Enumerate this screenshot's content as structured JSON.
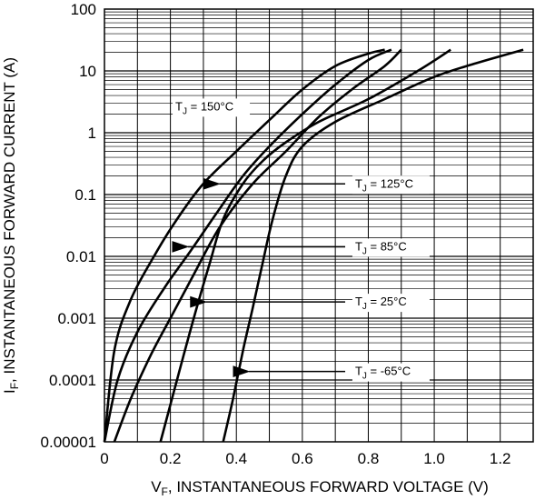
{
  "chart_data": {
    "type": "line",
    "title": "",
    "xlabel_main": "V",
    "xlabel_sub": "F",
    "xlabel_rest": ", INSTANTANEOUS FORWARD VOLTAGE (V)",
    "ylabel_main": "I",
    "ylabel_sub": "F",
    "ylabel_rest": ", INSTANTANEOUS FORWARD CURRENT (A)",
    "x_ticks": [
      "0",
      "0.2",
      "0.4",
      "0.6",
      "0.8",
      "1.0",
      "1.2"
    ],
    "y_ticks": [
      "0.00001",
      "0.0001",
      "0.001",
      "0.01",
      "0.1",
      "1",
      "10",
      "100"
    ],
    "xlim": [
      0,
      1.3
    ],
    "ylim": [
      1e-05,
      100
    ],
    "yscale": "log",
    "grid": true,
    "legend": "none",
    "series": [
      {
        "name": "150",
        "label_prefix": "T",
        "label_sub": "J",
        "label_rest": " = 150°C",
        "x": [
          0.0,
          0.03,
          0.08,
          0.15,
          0.22,
          0.3,
          0.4,
          0.5,
          0.6,
          0.7,
          0.8,
          0.85
        ],
        "y": [
          1e-05,
          0.0003,
          0.002,
          0.01,
          0.04,
          0.15,
          0.5,
          1.6,
          5,
          12,
          19,
          22
        ]
      },
      {
        "name": "125",
        "label_prefix": "T",
        "label_sub": "J",
        "label_rest": " = 125°C",
        "x": [
          0.0,
          0.04,
          0.1,
          0.18,
          0.26,
          0.34,
          0.42,
          0.5,
          0.6,
          0.7,
          0.8,
          0.87
        ],
        "y": [
          1e-05,
          0.0001,
          0.0006,
          0.003,
          0.012,
          0.05,
          0.2,
          0.6,
          2.0,
          6,
          15,
          22
        ]
      },
      {
        "name": "85",
        "label_prefix": "T",
        "label_sub": "J",
        "label_rest": " = 85°C",
        "x": [
          0.03,
          0.08,
          0.14,
          0.2,
          0.27,
          0.35,
          0.45,
          0.55,
          0.65,
          0.75,
          0.85,
          0.9
        ],
        "y": [
          1e-05,
          5e-05,
          0.00025,
          0.001,
          0.005,
          0.03,
          0.15,
          0.5,
          1.8,
          5,
          12,
          22
        ]
      },
      {
        "name": "25",
        "label_prefix": "T",
        "label_sub": "J",
        "label_rest": " = 25°C",
        "x": [
          0.17,
          0.2,
          0.24,
          0.28,
          0.32,
          0.36,
          0.42,
          0.48,
          0.55,
          0.65,
          0.8,
          0.95,
          1.05
        ],
        "y": [
          1e-05,
          4e-05,
          0.00025,
          0.0015,
          0.008,
          0.04,
          0.15,
          0.35,
          0.7,
          1.5,
          3.5,
          10,
          22
        ]
      },
      {
        "name": "-65",
        "label_prefix": "T",
        "label_sub": "J",
        "label_rest": " = -65°C",
        "x": [
          0.36,
          0.39,
          0.42,
          0.45,
          0.48,
          0.51,
          0.55,
          0.6,
          0.7,
          0.85,
          1.0,
          1.12,
          1.27
        ],
        "y": [
          1e-05,
          5e-05,
          0.0003,
          0.0015,
          0.008,
          0.04,
          0.2,
          0.6,
          1.5,
          3.5,
          8,
          13,
          22
        ]
      }
    ],
    "annotations": [
      {
        "series": "150",
        "text_x": 0.215,
        "text_y": 2.3,
        "arrow": false
      },
      {
        "series": "125",
        "text_x": 0.76,
        "text_y": 0.13,
        "arrow_from": 0.73,
        "arrow_to": 0.315
      },
      {
        "series": "85",
        "text_x": 0.76,
        "text_y": 0.0125,
        "arrow_from": 0.73,
        "arrow_to": 0.22
      },
      {
        "series": "25",
        "text_x": 0.76,
        "text_y": 0.0016,
        "arrow_from": 0.73,
        "arrow_to": 0.275
      },
      {
        "series": "-65",
        "text_x": 0.76,
        "text_y": 0.00012,
        "arrow_from": 0.73,
        "arrow_to": 0.405
      }
    ]
  }
}
